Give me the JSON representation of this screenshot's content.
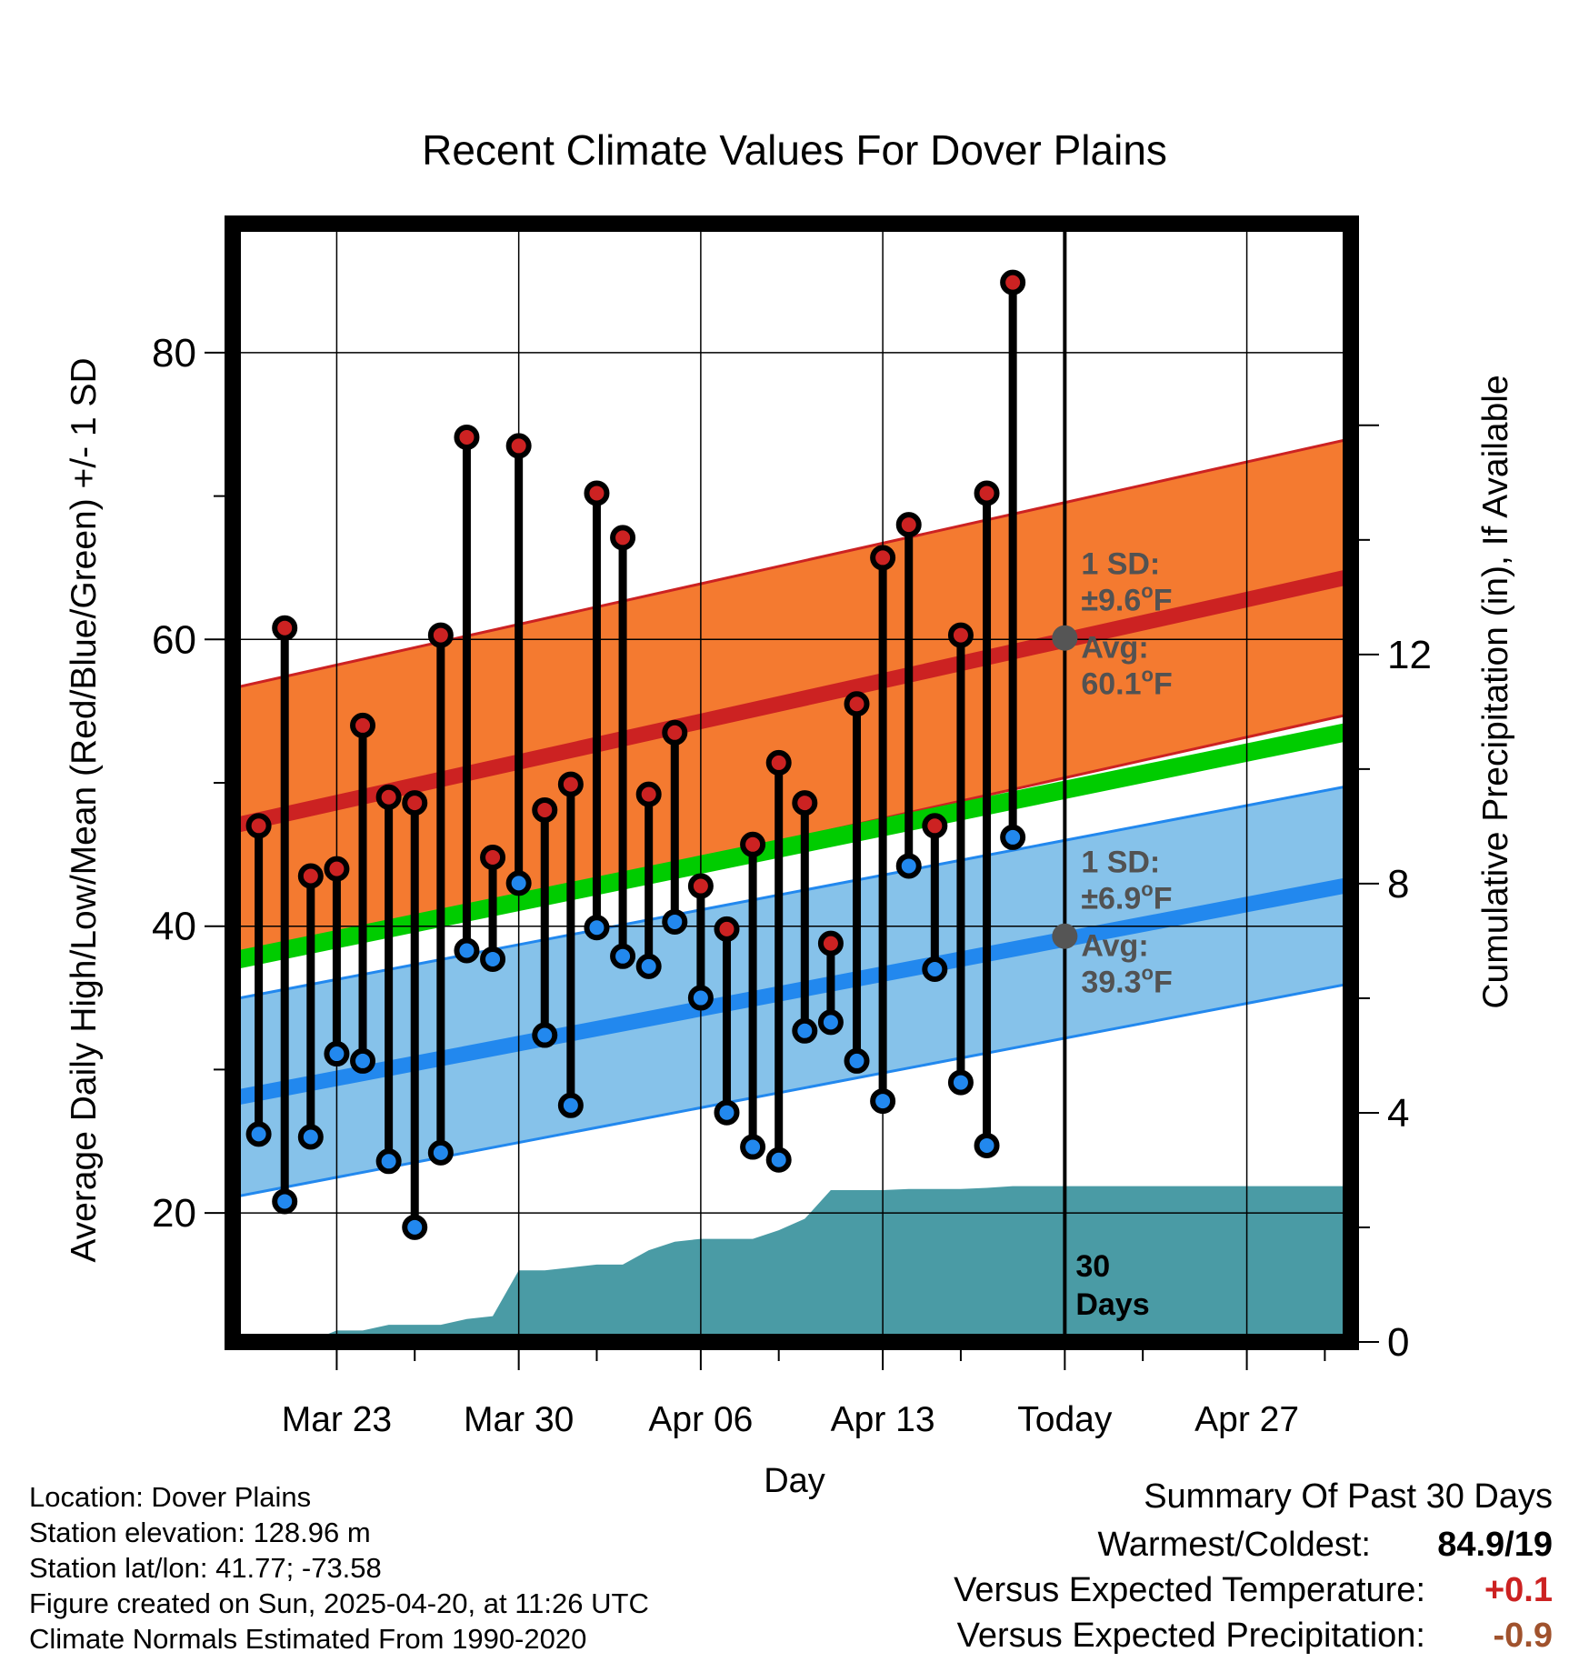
{
  "chart_data": {
    "type": "line",
    "title": "Recent Climate Values For Dover Plains",
    "xlabel": "Day",
    "ylabel": "Average Daily High/Low/Mean (Red/Blue/Green) +/- 1 SD",
    "y2label": "Cumulative Precipitation (in), If Available",
    "x_ticks": [
      "Mar 23",
      "Mar 30",
      "Apr 06",
      "Apr 13",
      "Today",
      "Apr 27"
    ],
    "x_range": [
      "2025-03-19",
      "2025-05-01"
    ],
    "today": "2025-04-20",
    "ylim": [
      11,
      89
    ],
    "y_ticks": [
      20,
      40,
      60,
      80
    ],
    "y2lim": [
      0,
      19.52
    ],
    "y2_ticks": [
      0,
      4,
      8,
      12
    ],
    "grid": true,
    "days": [
      "2025-03-20",
      "2025-03-21",
      "2025-03-22",
      "2025-03-23",
      "2025-03-24",
      "2025-03-25",
      "2025-03-26",
      "2025-03-27",
      "2025-03-28",
      "2025-03-29",
      "2025-03-30",
      "2025-03-31",
      "2025-04-01",
      "2025-04-02",
      "2025-04-03",
      "2025-04-04",
      "2025-04-05",
      "2025-04-06",
      "2025-04-07",
      "2025-04-08",
      "2025-04-09",
      "2025-04-10",
      "2025-04-11",
      "2025-04-12",
      "2025-04-13",
      "2025-04-14",
      "2025-04-15",
      "2025-04-16",
      "2025-04-17",
      "2025-04-18",
      "2025-04-19"
    ],
    "series": [
      {
        "name": "High",
        "values": [
          47,
          60.8,
          43.5,
          44,
          54,
          49,
          48.6,
          60.3,
          74.1,
          44.8,
          73.5,
          48.1,
          49.9,
          70.2,
          67.1,
          49.2,
          53.5,
          42.8,
          39.8,
          45.7,
          51.4,
          48.6,
          38.8,
          55.5,
          65.7,
          68,
          47,
          60.3,
          70.2,
          84.9,
          null
        ]
      },
      {
        "name": "Low",
        "values": [
          25.5,
          20.8,
          25.3,
          31.1,
          30.6,
          23.6,
          19,
          24.2,
          38.3,
          37.7,
          43,
          32.4,
          27.5,
          39.9,
          37.9,
          37.2,
          40.3,
          35,
          27,
          24.6,
          23.7,
          32.7,
          33.3,
          30.6,
          27.8,
          44.2,
          37,
          29.1,
          24.7,
          46.2,
          null
        ]
      }
    ],
    "normals": {
      "high_avg": {
        "start": 47,
        "end": 64.4,
        "today": 60.1
      },
      "high_sd": 9.6,
      "low_avg": {
        "start": 28,
        "end": 42.9,
        "today": 39.3
      },
      "low_sd": 6.9,
      "mean_avg": {
        "start": 37.6,
        "end": 53.6
      }
    },
    "precipitation": {
      "days": [
        "2025-03-20",
        "2025-03-22",
        "2025-03-23",
        "2025-03-24",
        "2025-03-25",
        "2025-03-26",
        "2025-03-27",
        "2025-03-28",
        "2025-03-29",
        "2025-03-30",
        "2025-03-31",
        "2025-04-01",
        "2025-04-02",
        "2025-04-03",
        "2025-04-04",
        "2025-04-05",
        "2025-04-06",
        "2025-04-07",
        "2025-04-08",
        "2025-04-09",
        "2025-04-10",
        "2025-04-11",
        "2025-04-12",
        "2025-04-13",
        "2025-04-14",
        "2025-04-15",
        "2025-04-16",
        "2025-04-17",
        "2025-04-18",
        "2025-04-19",
        "2025-04-20",
        "2025-05-01"
      ],
      "values": [
        0.02,
        0.02,
        0.2,
        0.2,
        0.3,
        0.3,
        0.3,
        0.4,
        0.45,
        1.25,
        1.25,
        1.3,
        1.35,
        1.35,
        1.6,
        1.75,
        1.8,
        1.8,
        1.8,
        1.95,
        2.15,
        2.65,
        2.65,
        2.65,
        2.67,
        2.67,
        2.67,
        2.69,
        2.72,
        2.72,
        2.72,
        2.72
      ]
    },
    "annotations": [
      {
        "line1": "1 SD:",
        "line2": "±9.6",
        "unit": "F",
        "line3": "Avg:",
        "line4": "60.1",
        "color": "#525252"
      },
      {
        "line1": "1 SD:",
        "line2": "±6.9",
        "unit": "F",
        "line3": "Avg:",
        "line4": "39.3",
        "color": "#525252"
      }
    ],
    "period_label_1": "30",
    "period_label_2": "Days",
    "degree_symbol": "o",
    "colors": {
      "high": "#cc2222",
      "low": "#2288ee",
      "mean": "#00cc00",
      "high_band": "#f47a30",
      "low_band": "#86c2ea",
      "precip": "#4a9ba5",
      "annotation": "#525252"
    }
  },
  "footer": {
    "location": "Location: Dover Plains",
    "elevation": "Station elevation: 128.96 m",
    "latlon": "Station lat/lon: 41.77; -73.58",
    "created": "Figure created on Sun, 2025-04-20, at 11:26 UTC",
    "normals": "Climate Normals Estimated From 1990-2020"
  },
  "summary": {
    "title": "Summary Of Past 30 Days",
    "warmest_label": "Warmest/Coldest:",
    "warmest_value": "84.9/19",
    "temp_label": "Versus Expected Temperature:",
    "temp_value": "+0.1",
    "temp_color": "#cc2222",
    "precip_label": "Versus Expected Precipitation:",
    "precip_value": "-0.9",
    "precip_color": "#a0522d"
  }
}
